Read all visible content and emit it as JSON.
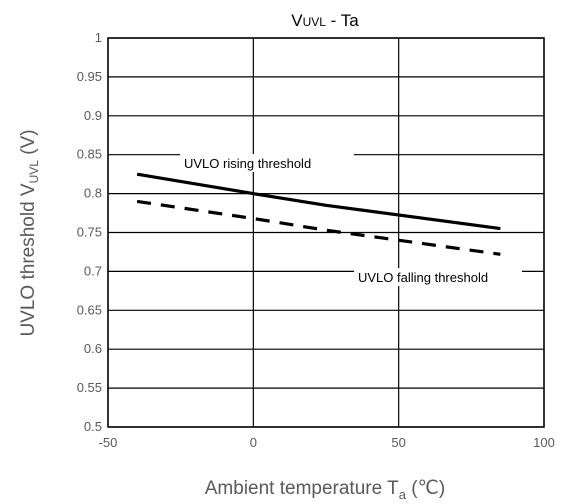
{
  "chart_data": {
    "type": "line",
    "title": "VUVL - Ta",
    "title_parts": {
      "main": "V",
      "sub": "UVL",
      "mid": " - T",
      "tail": "a"
    },
    "xlabel": "Ambient temperature  T",
    "xlabel_sub": "a",
    "xlabel_unit": "  (℃)",
    "ylabel": "UVLO threshold  V",
    "ylabel_sub": "UVL",
    "ylabel_unit": " (V)",
    "xlim": [
      -50,
      100
    ],
    "ylim": [
      0.5,
      1.0
    ],
    "xticks": [
      -50,
      0,
      50,
      100
    ],
    "xtick_labels": [
      "-50",
      "0",
      "50",
      "100"
    ],
    "yticks": [
      0.5,
      0.55,
      0.6,
      0.65,
      0.7,
      0.75,
      0.8,
      0.85,
      0.9,
      0.95,
      1.0
    ],
    "ytick_labels": [
      "0.5",
      "0.55",
      "0.6",
      "0.65",
      "0.7",
      "0.75",
      "0.8",
      "0.85",
      "0.9",
      "0.95",
      "1"
    ],
    "grid": true,
    "series": [
      {
        "name": "UVLO rising threshold",
        "style": "solid",
        "color": "#000000",
        "x": [
          -40,
          0,
          25,
          85
        ],
        "y": [
          0.825,
          0.8,
          0.785,
          0.755
        ]
      },
      {
        "name": "UVLO falling threshold",
        "style": "dashed",
        "color": "#000000",
        "x": [
          -40,
          0,
          25,
          85
        ],
        "y": [
          0.79,
          0.768,
          0.753,
          0.722
        ]
      }
    ],
    "annotations": [
      {
        "text": "UVLO rising threshold",
        "series": 0
      },
      {
        "text": "UVLO falling threshold",
        "series": 1
      }
    ]
  }
}
